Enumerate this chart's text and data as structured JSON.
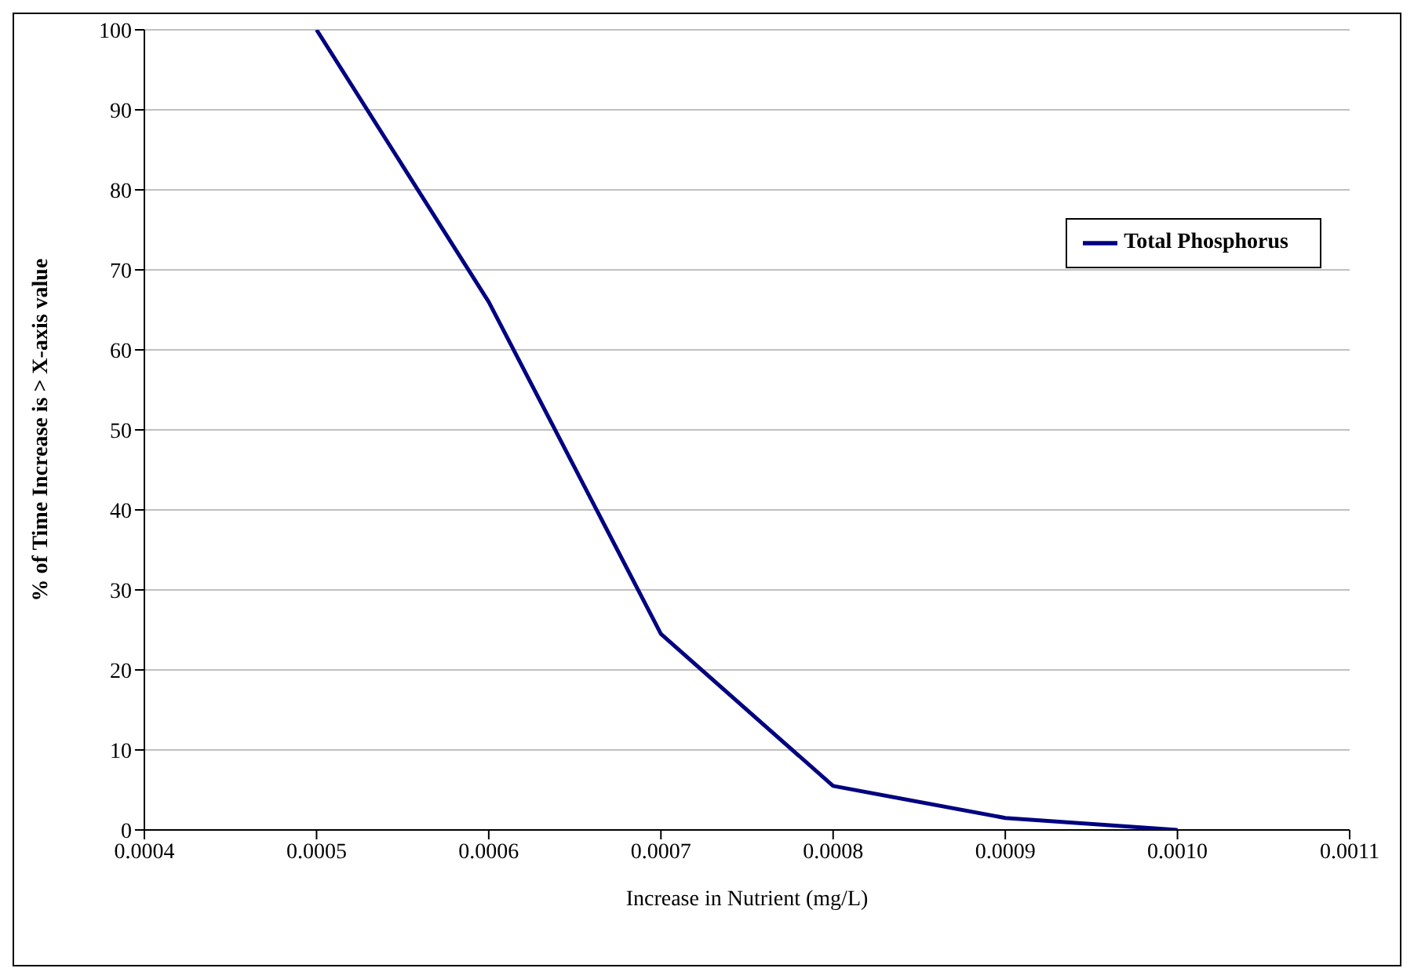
{
  "chart_data": {
    "type": "line",
    "xlabel": "Increase in Nutrient (mg/L)",
    "ylabel": "% of Time Increase is > X-axis value",
    "x": [
      0.0005,
      0.0006,
      0.0007,
      0.0008,
      0.0009,
      0.001
    ],
    "series": [
      {
        "name": "Total Phosphorus",
        "color": "#000080",
        "values": [
          100,
          66,
          24.5,
          5.5,
          1.5,
          0
        ]
      }
    ],
    "xlim": [
      0.0004,
      0.0011
    ],
    "xticks": [
      0.0004,
      0.0005,
      0.0006,
      0.0007,
      0.0008,
      0.0009,
      {
        "value": 0.001,
        "label": "0.0010"
      },
      0.0011
    ],
    "ylim": [
      0,
      100
    ],
    "yticks": [
      0,
      10,
      20,
      30,
      40,
      50,
      60,
      70,
      80,
      90,
      100
    ],
    "grid": "y",
    "legend": "top right",
    "marker": "none",
    "line_style": "solid"
  }
}
